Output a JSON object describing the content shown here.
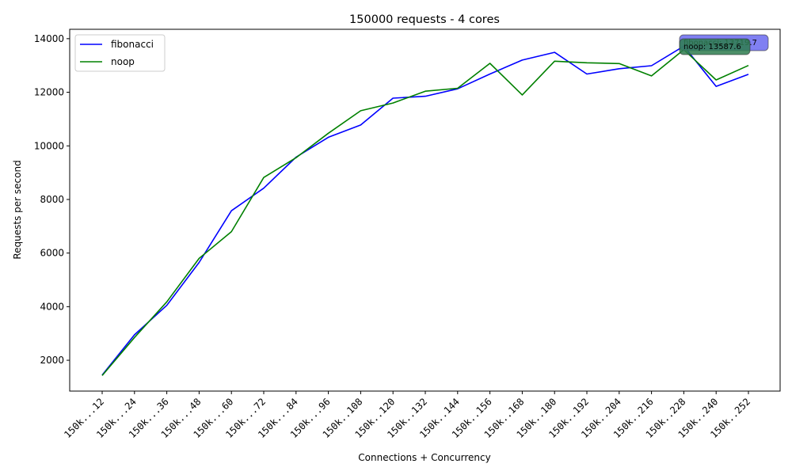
{
  "chart_data": {
    "type": "line",
    "title": "150000 requests - 4 cores",
    "xlabel": "Connections + Concurrency",
    "ylabel": "Requests per second",
    "categories": [
      "150k...12",
      "150k...24",
      "150k...36",
      "150k...48",
      "150k...60",
      "150k...72",
      "150k...84",
      "150k...96",
      "150k..108",
      "150k..120",
      "150k..132",
      "150k..144",
      "150k..156",
      "150k..168",
      "150k..180",
      "150k..192",
      "150k..204",
      "150k..216",
      "150k..228",
      "150k..240",
      "150k..252"
    ],
    "series": [
      {
        "name": "fibonacci",
        "color": "#0000ff",
        "values": [
          1450,
          2950,
          4050,
          5650,
          7580,
          8420,
          9580,
          10320,
          10780,
          11780,
          11850,
          12130,
          12680,
          13200,
          13490,
          12680,
          12880,
          12990,
          13720,
          12220,
          12670
        ]
      },
      {
        "name": "noop",
        "color": "#008000",
        "values": [
          1430,
          2850,
          4180,
          5800,
          6800,
          8820,
          9560,
          10470,
          11310,
          11600,
          12040,
          12150,
          13080,
          11900,
          13160,
          13100,
          13070,
          12610,
          13590,
          12460,
          13000
        ]
      }
    ],
    "yticks": [
      2000,
      4000,
      6000,
      8000,
      10000,
      12000,
      14000
    ],
    "ylim": [
      850,
      14350
    ],
    "grid": false,
    "legend": "upper-left",
    "annotations": [
      {
        "text": "fibonacci: 13719.7",
        "color": "#6a6af0"
      },
      {
        "text": "noop: 13587.6",
        "color": "#2e7d4f"
      }
    ]
  }
}
